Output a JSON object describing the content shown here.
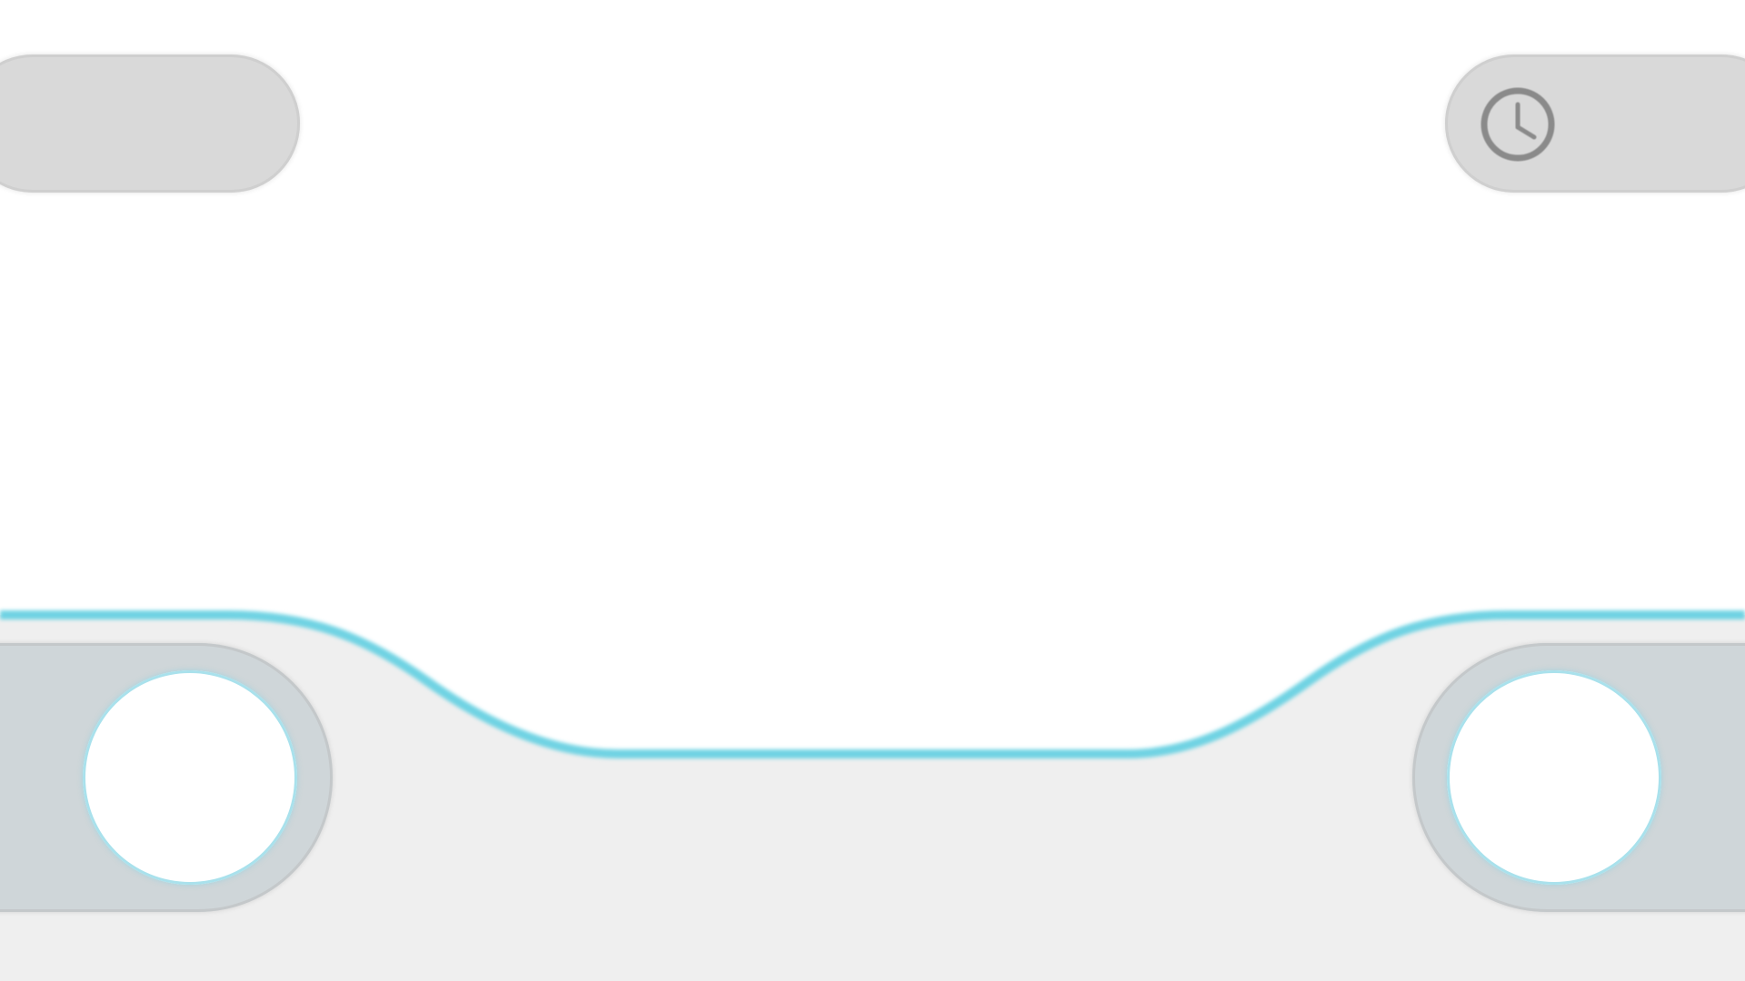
{
  "colors": {
    "background": "#ffffff",
    "panel_gray": "#d9d9d9",
    "bottom_bar": "#efefef",
    "pad_fill": "#cfd6d9",
    "accent_line": "#6fd3e3",
    "button_ring": "#a9e1ec",
    "icon_gray": "#8a8a8a"
  },
  "icons": {
    "clock": "clock-icon"
  }
}
